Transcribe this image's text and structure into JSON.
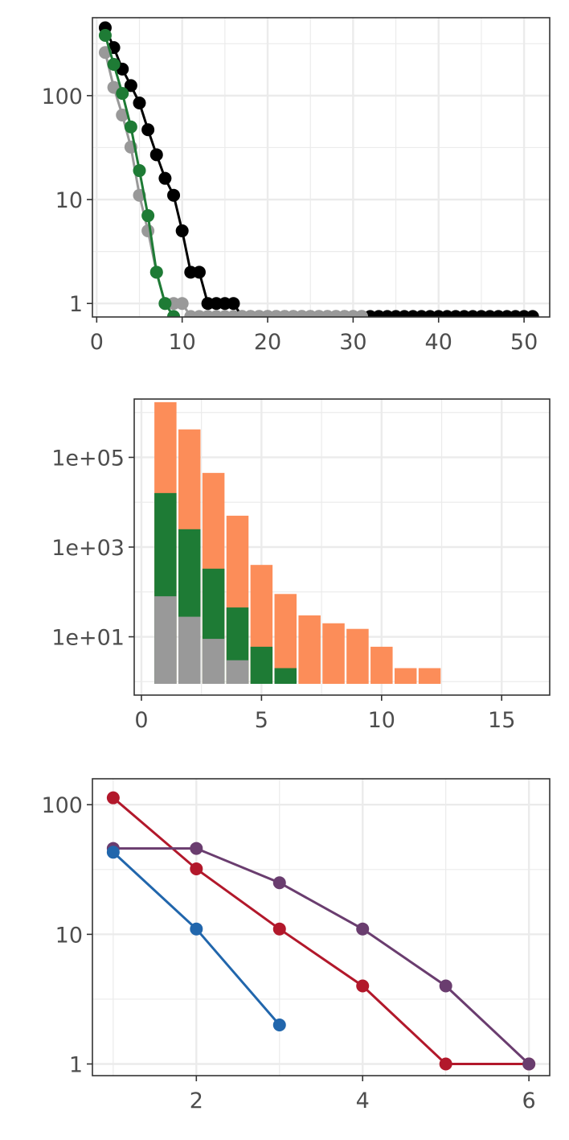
{
  "chart_data": [
    {
      "type": "line",
      "title": "",
      "xlabel": "",
      "ylabel": "",
      "yscale": "log10",
      "xlim": [
        -0.5,
        53
      ],
      "ylim_log10": [
        -0.13,
        2.75
      ],
      "xticks": [
        0,
        10,
        20,
        30,
        40,
        50
      ],
      "xtick_labels": [
        "0",
        "10",
        "20",
        "30",
        "40",
        "50"
      ],
      "yticks": [
        1,
        10,
        100
      ],
      "ytick_labels": [
        "1",
        "10",
        "100"
      ],
      "grid": true,
      "series": [
        {
          "color": "#000000",
          "x": [
            1,
            2,
            3,
            4,
            5,
            6,
            7,
            8,
            9,
            10,
            11,
            12,
            13,
            14,
            15,
            16,
            17,
            18,
            19,
            20,
            21,
            22,
            23,
            24,
            25,
            26,
            27,
            28,
            29,
            30,
            31,
            32,
            33,
            34,
            35,
            36,
            37,
            38,
            39,
            40,
            41,
            42,
            43,
            44,
            45,
            46,
            47,
            48,
            49,
            50,
            51
          ],
          "y": [
            450,
            290,
            180,
            125,
            85,
            47,
            27,
            16,
            11,
            5,
            2,
            2,
            1,
            1,
            1,
            1,
            0.75,
            0.75,
            0.75,
            0.75,
            0.75,
            0.75,
            0.75,
            0.75,
            0.75,
            0.75,
            0.75,
            0.75,
            0.75,
            0.75,
            0.75,
            0.75,
            0.75,
            0.75,
            0.75,
            0.75,
            0.75,
            0.75,
            0.75,
            0.75,
            0.75,
            0.75,
            0.75,
            0.75,
            0.75,
            0.75,
            0.75,
            0.75,
            0.75,
            0.75,
            0.75
          ]
        },
        {
          "color": "#999999",
          "x": [
            1,
            2,
            3,
            4,
            5,
            6,
            7,
            8,
            9,
            10,
            11,
            12,
            13,
            14,
            15,
            16,
            17,
            18,
            19,
            20,
            21,
            22,
            23,
            24,
            25,
            26,
            27,
            28,
            29,
            30,
            31
          ],
          "y": [
            260,
            120,
            65,
            32,
            11,
            5,
            2,
            1,
            1,
            1,
            0.75,
            0.75,
            0.75,
            0.75,
            0.75,
            0.75,
            0.75,
            0.75,
            0.75,
            0.75,
            0.75,
            0.75,
            0.75,
            0.75,
            0.75,
            0.75,
            0.75,
            0.75,
            0.75,
            0.75,
            0.75
          ]
        },
        {
          "color": "#1e7b35",
          "x": [
            1,
            2,
            3,
            4,
            5,
            6,
            7,
            8,
            9
          ],
          "y": [
            380,
            200,
            105,
            50,
            19,
            7,
            2,
            1,
            0.75
          ]
        }
      ]
    },
    {
      "type": "bar",
      "title": "",
      "xlabel": "",
      "ylabel": "",
      "yscale": "log10",
      "barmode": "overlay",
      "xlim": [
        -0.3,
        17
      ],
      "ylim_log10": [
        -0.3,
        6.3
      ],
      "xticks": [
        0,
        5,
        10,
        15
      ],
      "xtick_labels": [
        "0",
        "5",
        "10",
        "15"
      ],
      "yticks": [
        10,
        1000,
        100000
      ],
      "ytick_labels": [
        "1e+01",
        "1e+03",
        "1e+05"
      ],
      "grid": true,
      "series": [
        {
          "color": "#fc8d59",
          "x": [
            1,
            2,
            3,
            4,
            5,
            6,
            7,
            8,
            9,
            10,
            11,
            12
          ],
          "values": [
            1700000,
            420000,
            45000,
            5000,
            400,
            90,
            30,
            20,
            15,
            6,
            2,
            2
          ]
        },
        {
          "color": "#1e7b35",
          "x": [
            1,
            2,
            3,
            4,
            5,
            6
          ],
          "values": [
            16000,
            2500,
            330,
            45,
            6,
            2
          ]
        },
        {
          "color": "#999999",
          "x": [
            1,
            2,
            3,
            4
          ],
          "values": [
            80,
            28,
            9,
            3
          ]
        }
      ]
    },
    {
      "type": "line",
      "title": "",
      "xlabel": "",
      "ylabel": "",
      "yscale": "log10",
      "xlim": [
        0.75,
        6.25
      ],
      "ylim_log10": [
        -0.09,
        2.2
      ],
      "xticks": [
        2,
        4,
        6
      ],
      "xtick_labels": [
        "2",
        "4",
        "6"
      ],
      "yticks": [
        1,
        10,
        100
      ],
      "ytick_labels": [
        "1",
        "10",
        "100"
      ],
      "grid": true,
      "series": [
        {
          "color": "#b2182b",
          "x": [
            1,
            2,
            3,
            4,
            5,
            6
          ],
          "y": [
            113,
            32,
            11,
            4,
            1,
            1
          ]
        },
        {
          "color": "#6a3d6f",
          "x": [
            1,
            2,
            3,
            4,
            5,
            6
          ],
          "y": [
            46,
            46,
            25,
            11,
            4,
            1
          ]
        },
        {
          "color": "#2166ac",
          "x": [
            1,
            2,
            3
          ],
          "y": [
            43,
            11,
            2
          ]
        }
      ]
    }
  ]
}
